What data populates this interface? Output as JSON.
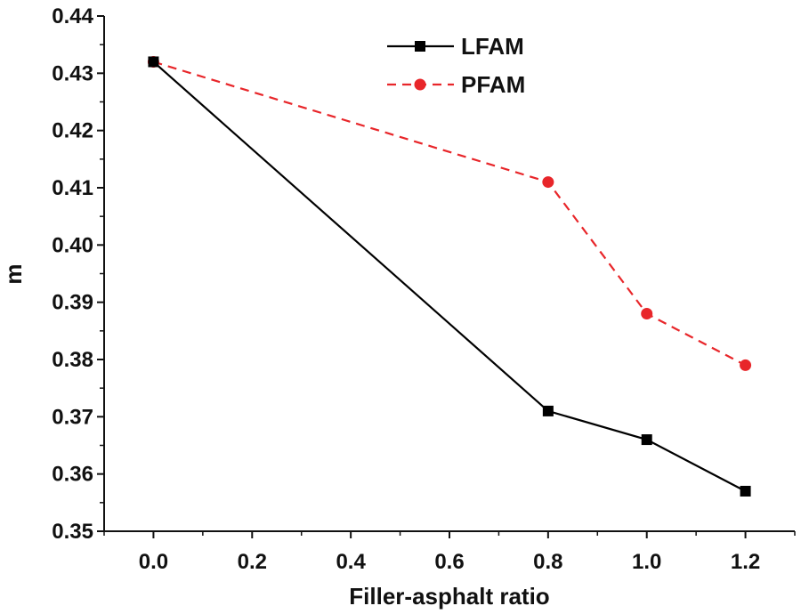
{
  "chart_data": {
    "type": "line",
    "title": "",
    "xlabel": "Filler-asphalt ratio",
    "ylabel": "m",
    "xlim": [
      -0.1,
      1.3
    ],
    "ylim": [
      0.35,
      0.44
    ],
    "xticks": [
      0.0,
      0.2,
      0.4,
      0.6,
      0.8,
      1.0,
      1.2
    ],
    "xtick_labels": [
      "0.0",
      "0.2",
      "0.4",
      "0.6",
      "0.8",
      "1.0",
      "1.2"
    ],
    "yticks": [
      0.35,
      0.36,
      0.37,
      0.38,
      0.39,
      0.4,
      0.41,
      0.42,
      0.43,
      0.44
    ],
    "ytick_labels": [
      "0.35",
      "0.36",
      "0.37",
      "0.38",
      "0.39",
      "0.40",
      "0.41",
      "0.42",
      "0.43",
      "0.44"
    ],
    "grid": false,
    "legend_position": "top-center",
    "series": [
      {
        "name": "LFAM",
        "color": "#000000",
        "line_style": "solid",
        "marker": "square",
        "x": [
          0.0,
          0.8,
          1.0,
          1.2
        ],
        "y": [
          0.432,
          0.371,
          0.366,
          0.357
        ]
      },
      {
        "name": "PFAM",
        "color": "#e8262a",
        "line_style": "dashed",
        "marker": "circle",
        "x": [
          0.0,
          0.8,
          1.0,
          1.2
        ],
        "y": [
          0.432,
          0.411,
          0.388,
          0.379
        ]
      }
    ]
  }
}
